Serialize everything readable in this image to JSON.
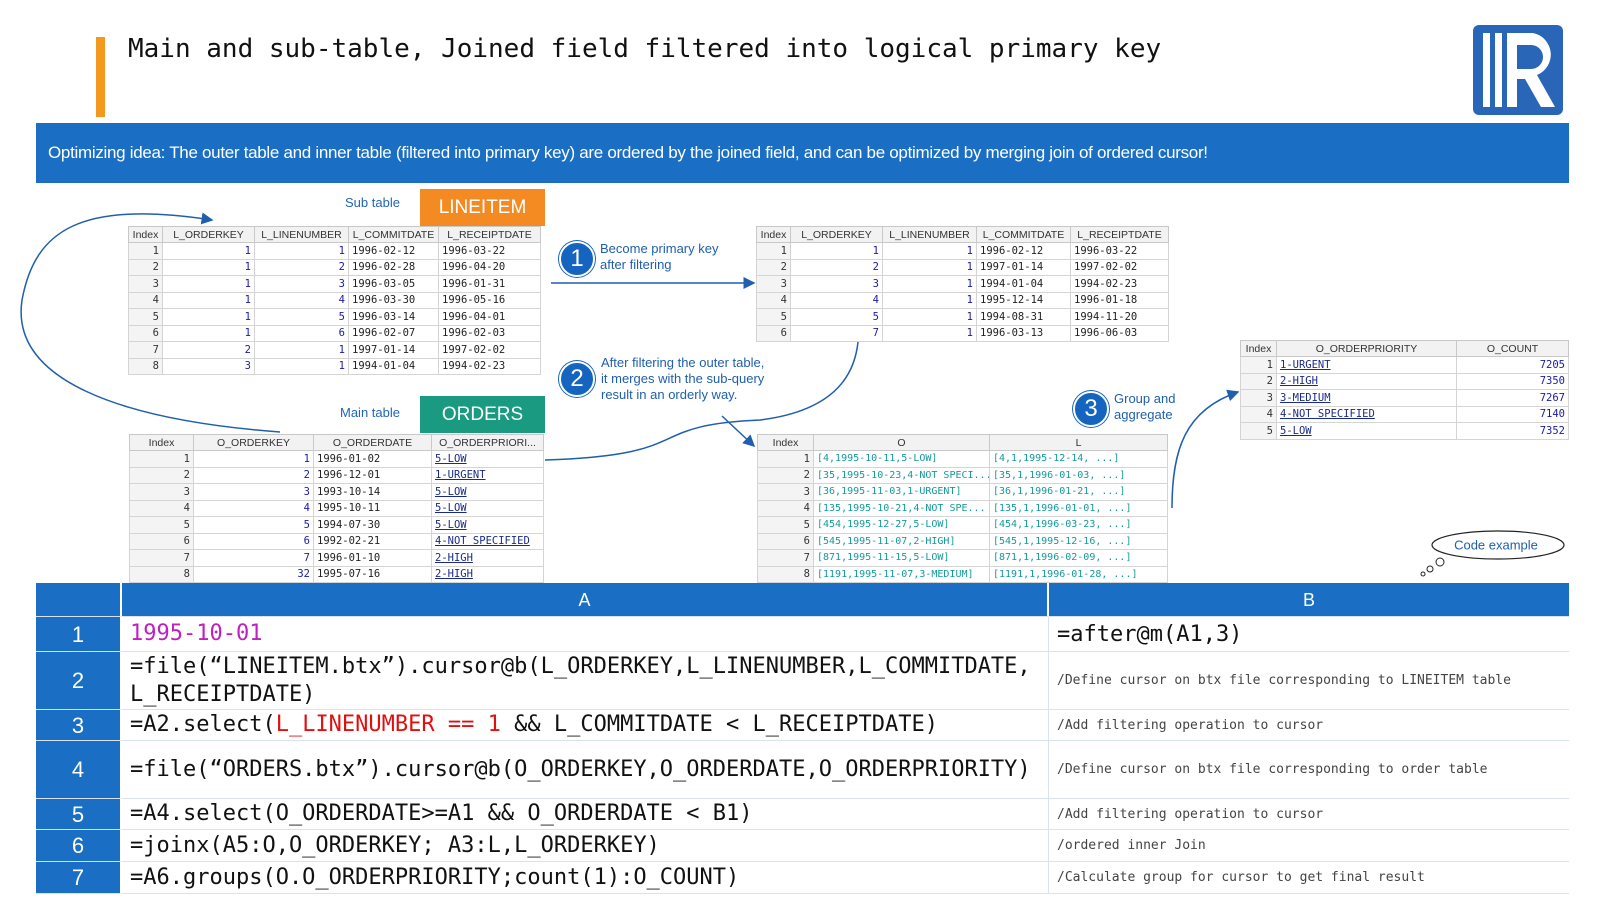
{
  "title": "Main and sub-table, Joined field filtered into logical primary key",
  "banner": "Optimizing idea: The outer table and inner table (filtered into primary key) are ordered by the joined field, and can be optimized by merging join of ordered cursor!",
  "sub_table_label": "Sub table",
  "sub_table_name": "LINEITEM",
  "main_table_label": "Main table",
  "main_table_name": "ORDERS",
  "lineitem_table": {
    "columns": [
      "Index",
      "L_ORDERKEY",
      "L_LINENUMBER",
      "L_COMMITDATE",
      "L_RECEIPTDATE"
    ],
    "rows": [
      [
        "1",
        "1",
        "1",
        "1996-02-12",
        "1996-03-22"
      ],
      [
        "2",
        "1",
        "2",
        "1996-02-28",
        "1996-04-20"
      ],
      [
        "3",
        "1",
        "3",
        "1996-03-05",
        "1996-01-31"
      ],
      [
        "4",
        "1",
        "4",
        "1996-03-30",
        "1996-05-16"
      ],
      [
        "5",
        "1",
        "5",
        "1996-03-14",
        "1996-04-01"
      ],
      [
        "6",
        "1",
        "6",
        "1996-02-07",
        "1996-02-03"
      ],
      [
        "7",
        "2",
        "1",
        "1997-01-14",
        "1997-02-02"
      ],
      [
        "8",
        "3",
        "1",
        "1994-01-04",
        "1994-02-23"
      ]
    ]
  },
  "filtered_table": {
    "columns": [
      "Index",
      "L_ORDERKEY",
      "L_LINENUMBER",
      "L_COMMITDATE",
      "L_RECEIPTDATE"
    ],
    "rows": [
      [
        "1",
        "1",
        "1",
        "1996-02-12",
        "1996-03-22"
      ],
      [
        "2",
        "2",
        "1",
        "1997-01-14",
        "1997-02-02"
      ],
      [
        "3",
        "3",
        "1",
        "1994-01-04",
        "1994-02-23"
      ],
      [
        "4",
        "4",
        "1",
        "1995-12-14",
        "1996-01-18"
      ],
      [
        "5",
        "5",
        "1",
        "1994-08-31",
        "1994-11-20"
      ],
      [
        "6",
        "7",
        "1",
        "1996-03-13",
        "1996-06-03"
      ]
    ]
  },
  "orders_table": {
    "columns": [
      "Index",
      "O_ORDERKEY",
      "O_ORDERDATE",
      "O_ORDERPRIORI..."
    ],
    "rows": [
      [
        "1",
        "1",
        "1996-01-02",
        "5-LOW"
      ],
      [
        "2",
        "2",
        "1996-12-01",
        "1-URGENT"
      ],
      [
        "3",
        "3",
        "1993-10-14",
        "5-LOW"
      ],
      [
        "4",
        "4",
        "1995-10-11",
        "5-LOW"
      ],
      [
        "5",
        "5",
        "1994-07-30",
        "5-LOW"
      ],
      [
        "6",
        "6",
        "1992-02-21",
        "4-NOT SPECIFIED"
      ],
      [
        "7",
        "7",
        "1996-01-10",
        "2-HIGH"
      ],
      [
        "8",
        "32",
        "1995-07-16",
        "2-HIGH"
      ]
    ]
  },
  "joined_table": {
    "columns": [
      "Index",
      "O",
      "L"
    ],
    "rows": [
      [
        "1",
        "[4,1995-10-11,5-LOW]",
        "[4,1,1995-12-14, ...]"
      ],
      [
        "2",
        "[35,1995-10-23,4-NOT SPECI...",
        "[35,1,1996-01-03, ...]"
      ],
      [
        "3",
        "[36,1995-11-03,1-URGENT]",
        "[36,1,1996-01-21, ...]"
      ],
      [
        "4",
        "[135,1995-10-21,4-NOT SPE...",
        "[135,1,1996-01-01, ...]"
      ],
      [
        "5",
        "[454,1995-12-27,5-LOW]",
        "[454,1,1996-03-23, ...]"
      ],
      [
        "6",
        "[545,1995-11-07,2-HIGH]",
        "[545,1,1995-12-16, ...]"
      ],
      [
        "7",
        "[871,1995-11-15,5-LOW]",
        "[871,1,1996-02-09, ...]"
      ],
      [
        "8",
        "[1191,1995-11-07,3-MEDIUM]",
        "[1191,1,1996-01-28, ...]"
      ]
    ]
  },
  "result_table": {
    "columns": [
      "Index",
      "O_ORDERPRIORITY",
      "O_COUNT"
    ],
    "rows": [
      [
        "1",
        "1-URGENT",
        "7205"
      ],
      [
        "2",
        "2-HIGH",
        "7350"
      ],
      [
        "3",
        "3-MEDIUM",
        "7267"
      ],
      [
        "4",
        "4-NOT SPECIFIED",
        "7140"
      ],
      [
        "5",
        "5-LOW",
        "7352"
      ]
    ]
  },
  "steps": [
    {
      "number": "1",
      "lines": [
        "Become primary key",
        "after filtering"
      ]
    },
    {
      "number": "2",
      "lines": [
        "After filtering the outer table,",
        "it merges with the sub-query",
        "result in an orderly way."
      ]
    },
    {
      "number": "3",
      "lines": [
        "Group and",
        "aggregate"
      ]
    }
  ],
  "code_example": "Code example",
  "code": {
    "columns": [
      "A",
      "B"
    ],
    "rows": [
      {
        "index": "1",
        "a": [
          {
            "text": "1995-10-01",
            "color": "#c020c0"
          }
        ],
        "b": "=after@m(A1,3)"
      },
      {
        "index": "2",
        "a": [
          {
            "text": "=file(“LINEITEM.btx”).cursor@b(L_ORDERKEY,L_LINENUMBER,L_COMMITDATE,L_RECEIPTDATE)"
          }
        ],
        "b": "/Define cursor on btx file corresponding to LINEITEM table"
      },
      {
        "index": "3",
        "a": [
          {
            "text": "=A2.select("
          },
          {
            "text": "L_LINENUMBER == 1",
            "color": "#e01010"
          },
          {
            "text": " && L_COMMITDATE < L_RECEIPTDATE)"
          }
        ],
        "b": "/Add filtering operation to cursor"
      },
      {
        "index": "4",
        "a": [
          {
            "text": "=file(“ORDERS.btx”).cursor@b(O_ORDERKEY,O_ORDERDATE,O_ORDERPRIORITY)"
          }
        ],
        "b": "/Define cursor on btx file corresponding to order table"
      },
      {
        "index": "5",
        "a": [
          {
            "text": "=A4.select(O_ORDERDATE>=A1 && O_ORDERDATE < B1)"
          }
        ],
        "b": "/Add filtering operation to cursor"
      },
      {
        "index": "6",
        "a": [
          {
            "text": "=joinx(A5:O,O_ORDERKEY; A3:L,L_ORDERKEY)"
          }
        ],
        "b": "/ordered inner Join"
      },
      {
        "index": "7",
        "a": [
          {
            "text": "=A6.groups(O.O_ORDERPRIORITY;count(1):O_COUNT)"
          }
        ],
        "b": "/Calculate group for cursor to get final result"
      }
    ]
  }
}
